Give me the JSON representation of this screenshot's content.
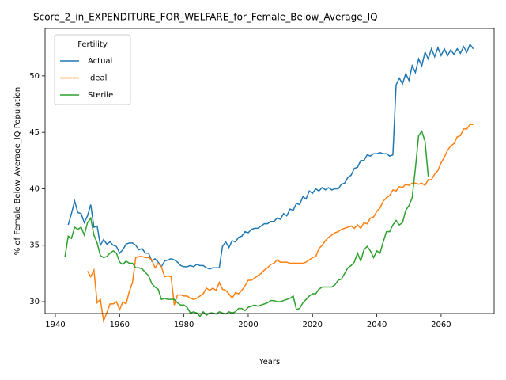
{
  "chart_data": {
    "type": "line",
    "title": "Score_2_in_EXPENDITURE_FOR_WELFARE_for_Female_Below_Average_IQ",
    "x_label": "Years",
    "y_label": "% of Female Below_Average_IQ Population",
    "legend_title": "Fertility",
    "legend": "upper left",
    "xlim": [
      1936.8,
      2076.5
    ],
    "ylim": [
      28.95,
      54.2
    ],
    "xticks": [
      1940,
      1960,
      1980,
      2000,
      2020,
      2040,
      2060
    ],
    "yticks": [
      30,
      35,
      40,
      45,
      50
    ],
    "series": [
      {
        "name": "Actual",
        "color": "#1f77b4",
        "x": [
          1944,
          1945,
          1946,
          1947,
          1948,
          1949,
          1950,
          1951,
          1952,
          1953,
          1954,
          1955,
          1956,
          1957,
          1958,
          1959,
          1960,
          1961,
          1962,
          1963,
          1964,
          1965,
          1966,
          1967,
          1968,
          1969,
          1970,
          1971,
          1972,
          1973,
          1974,
          1975,
          1976,
          1977,
          1978,
          1979,
          1980,
          1981,
          1982,
          1983,
          1984,
          1985,
          1986,
          1987,
          1988,
          1989,
          1990,
          1991,
          1992,
          1993,
          1994,
          1995,
          1996,
          1997,
          1998,
          1999,
          2000,
          2001,
          2002,
          2003,
          2004,
          2005,
          2006,
          2007,
          2008,
          2009,
          2010,
          2011,
          2012,
          2013,
          2014,
          2015,
          2016,
          2017,
          2018,
          2019,
          2020,
          2021,
          2022,
          2023,
          2024,
          2025,
          2026,
          2027,
          2028,
          2029,
          2030,
          2031,
          2032,
          2033,
          2034,
          2035,
          2036,
          2037,
          2038,
          2039,
          2040,
          2041,
          2042,
          2043,
          2044,
          2045,
          2046,
          2047,
          2048,
          2049,
          2050,
          2051,
          2052,
          2053,
          2054,
          2055,
          2056,
          2057,
          2058,
          2059,
          2060,
          2061,
          2062,
          2063,
          2064,
          2065,
          2066,
          2067,
          2068,
          2069,
          2070
        ],
        "values": [
          36.8,
          37.8,
          38.9,
          37.9,
          37.8,
          37.0,
          37.6,
          38.6,
          36.6,
          36.7,
          35.0,
          35.5,
          35.1,
          35.3,
          35.0,
          34.9,
          34.3,
          34.6,
          35.1,
          35.2,
          35.2,
          35.0,
          34.6,
          34.7,
          34.3,
          34.3,
          33.6,
          33.8,
          33.5,
          33.1,
          33.6,
          33.7,
          33.8,
          33.7,
          33.5,
          33.2,
          33.1,
          33.1,
          33.2,
          33.1,
          33.3,
          33.2,
          33.2,
          33.0,
          32.9,
          33.0,
          33.0,
          33.0,
          34.9,
          35.3,
          34.8,
          35.4,
          35.3,
          35.7,
          35.8,
          36.2,
          36.1,
          36.4,
          36.5,
          36.5,
          36.7,
          36.9,
          36.9,
          37.1,
          37.1,
          37.4,
          37.3,
          37.8,
          37.6,
          38.2,
          38.1,
          38.7,
          38.6,
          39.3,
          39.1,
          39.8,
          39.6,
          40.0,
          39.8,
          40.1,
          39.9,
          40.1,
          39.9,
          40.0,
          40.0,
          40.4,
          40.5,
          41.0,
          41.2,
          41.8,
          41.9,
          42.5,
          42.5,
          43.0,
          42.9,
          43.1,
          43.1,
          43.2,
          43.1,
          43.1,
          42.9,
          43.0,
          49.2,
          49.8,
          49.3,
          50.2,
          49.6,
          50.9,
          50.3,
          51.5,
          50.9,
          52.1,
          51.5,
          52.4,
          51.7,
          52.5,
          51.8,
          52.4,
          51.8,
          52.3,
          51.9,
          52.4,
          52.0,
          52.6,
          52.1,
          52.8,
          52.4
        ]
      },
      {
        "name": "Ideal",
        "color": "#ff7f0e",
        "x": [
          1950,
          1951,
          1952,
          1953,
          1954,
          1955,
          1956,
          1957,
          1958,
          1959,
          1960,
          1961,
          1962,
          1963,
          1964,
          1965,
          1966,
          1967,
          1968,
          1969,
          1970,
          1971,
          1972,
          1973,
          1974,
          1975,
          1976,
          1977,
          1978,
          1979,
          1980,
          1981,
          1982,
          1983,
          1984,
          1985,
          1986,
          1987,
          1988,
          1989,
          1990,
          1991,
          1992,
          1993,
          1994,
          1995,
          1996,
          1997,
          1998,
          1999,
          2000,
          2001,
          2002,
          2003,
          2004,
          2005,
          2006,
          2007,
          2008,
          2009,
          2010,
          2011,
          2012,
          2013,
          2014,
          2015,
          2016,
          2017,
          2018,
          2019,
          2020,
          2021,
          2022,
          2023,
          2024,
          2025,
          2026,
          2027,
          2028,
          2029,
          2030,
          2031,
          2032,
          2033,
          2034,
          2035,
          2036,
          2037,
          2038,
          2039,
          2040,
          2041,
          2042,
          2043,
          2044,
          2045,
          2046,
          2047,
          2048,
          2049,
          2050,
          2051,
          2052,
          2053,
          2054,
          2055,
          2056,
          2057,
          2058,
          2059,
          2060,
          2061,
          2062,
          2063,
          2064,
          2065,
          2066,
          2067,
          2068,
          2069,
          2070
        ],
        "values": [
          32.7,
          32.2,
          32.8,
          29.9,
          30.2,
          28.3,
          29.0,
          29.8,
          29.8,
          30.0,
          29.3,
          30.0,
          29.8,
          30.9,
          31.7,
          33.9,
          34.0,
          34.0,
          33.9,
          33.9,
          33.7,
          33.0,
          33.4,
          33.1,
          32.2,
          32.3,
          32.2,
          29.7,
          30.6,
          30.6,
          30.5,
          30.5,
          30.3,
          30.2,
          30.3,
          30.5,
          30.7,
          31.2,
          31.0,
          31.2,
          31.0,
          31.7,
          31.1,
          31.0,
          30.7,
          30.3,
          30.8,
          30.7,
          31.0,
          31.4,
          31.9,
          31.9,
          32.1,
          32.3,
          32.5,
          32.8,
          33.0,
          33.3,
          33.4,
          33.7,
          33.5,
          33.5,
          33.5,
          33.4,
          33.4,
          33.4,
          33.4,
          33.4,
          33.5,
          33.7,
          33.9,
          34.0,
          34.7,
          35.0,
          35.4,
          35.7,
          35.9,
          36.1,
          36.2,
          36.4,
          36.5,
          36.6,
          36.7,
          36.5,
          36.8,
          36.5,
          37.0,
          36.9,
          37.4,
          37.5,
          38.0,
          38.3,
          38.9,
          39.2,
          39.4,
          39.9,
          39.8,
          40.2,
          40.1,
          40.4,
          40.3,
          40.5,
          40.5,
          40.4,
          40.5,
          40.3,
          40.8,
          40.8,
          41.3,
          41.6,
          42.3,
          42.8,
          43.4,
          43.8,
          44.0,
          44.6,
          44.7,
          45.3,
          45.3,
          45.7,
          45.7
        ]
      },
      {
        "name": "Sterile",
        "color": "#2ca02c",
        "x": [
          1943,
          1944,
          1945,
          1946,
          1947,
          1948,
          1949,
          1950,
          1951,
          1952,
          1953,
          1954,
          1955,
          1956,
          1957,
          1958,
          1959,
          1960,
          1961,
          1962,
          1963,
          1964,
          1965,
          1966,
          1967,
          1968,
          1969,
          1970,
          1971,
          1972,
          1973,
          1974,
          1975,
          1976,
          1977,
          1978,
          1979,
          1980,
          1981,
          1982,
          1983,
          1984,
          1985,
          1986,
          1987,
          1988,
          1989,
          1990,
          1991,
          1992,
          1993,
          1994,
          1995,
          1996,
          1997,
          1998,
          1999,
          2000,
          2001,
          2002,
          2003,
          2004,
          2005,
          2006,
          2007,
          2008,
          2009,
          2010,
          2011,
          2012,
          2013,
          2014,
          2015,
          2016,
          2017,
          2018,
          2019,
          2020,
          2021,
          2022,
          2023,
          2024,
          2025,
          2026,
          2027,
          2028,
          2029,
          2030,
          2031,
          2032,
          2033,
          2034,
          2035,
          2036,
          2037,
          2038,
          2039,
          2040,
          2041,
          2042,
          2043,
          2044,
          2045,
          2046,
          2047,
          2048,
          2049,
          2050,
          2051,
          2052,
          2053,
          2054,
          2055,
          2056
        ],
        "values": [
          34.0,
          35.8,
          35.6,
          36.6,
          36.4,
          36.6,
          35.9,
          37.0,
          37.4,
          35.9,
          35.2,
          34.1,
          33.9,
          34.0,
          34.3,
          34.5,
          34.3,
          33.5,
          33.3,
          33.6,
          33.4,
          33.4,
          33.0,
          33.0,
          32.9,
          32.6,
          32.3,
          31.6,
          31.3,
          31.1,
          30.2,
          30.3,
          30.2,
          30.2,
          30.2,
          29.9,
          29.7,
          29.7,
          29.5,
          29.0,
          29.1,
          29.0,
          28.7,
          29.1,
          28.8,
          29.0,
          29.0,
          28.9,
          29.1,
          29.0,
          28.9,
          29.1,
          29.0,
          29.1,
          29.4,
          29.4,
          29.2,
          29.5,
          29.6,
          29.7,
          29.6,
          29.7,
          29.8,
          29.9,
          30.1,
          30.1,
          30.0,
          30.0,
          30.1,
          30.2,
          30.3,
          30.5,
          29.3,
          29.4,
          29.9,
          30.2,
          30.5,
          30.7,
          30.7,
          31.1,
          31.3,
          31.3,
          31.3,
          31.3,
          31.5,
          31.9,
          32.0,
          32.5,
          33.0,
          33.2,
          33.5,
          34.3,
          33.6,
          34.6,
          34.9,
          34.5,
          33.9,
          34.5,
          34.3,
          35.3,
          36.2,
          36.2,
          36.8,
          37.2,
          36.8,
          37.0,
          38.1,
          38.5,
          39.2,
          41.8,
          44.7,
          45.1,
          44.2,
          41.1
        ]
      }
    ]
  }
}
